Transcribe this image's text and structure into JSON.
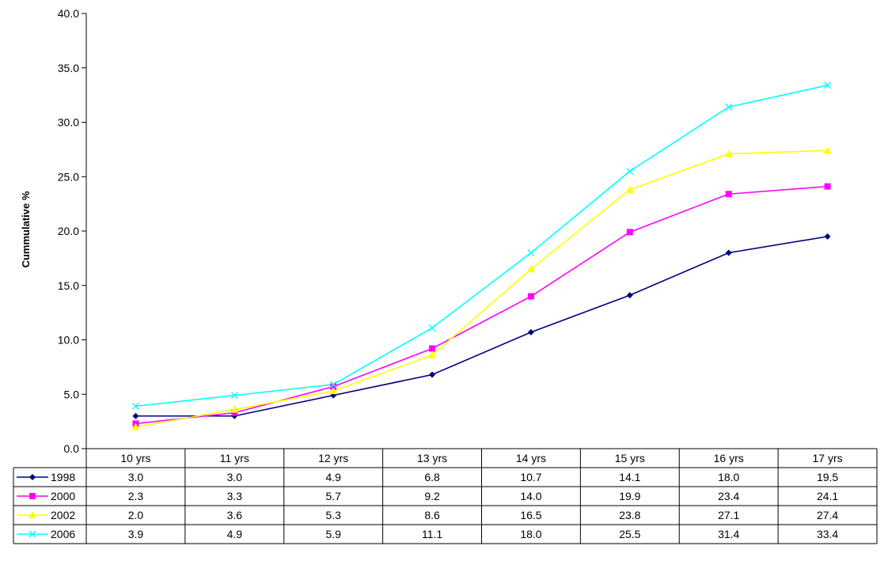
{
  "chart_data": {
    "type": "line",
    "ylabel": "Cummulative %",
    "xlabel": "",
    "categories": [
      "10 yrs",
      "11 yrs",
      "12 yrs",
      "13 yrs",
      "14 yrs",
      "15 yrs",
      "16 yrs",
      "17 yrs"
    ],
    "ylim": [
      0,
      40
    ],
    "yticks": [
      "0.0",
      "5.0",
      "10.0",
      "15.0",
      "20.0",
      "25.0",
      "30.0",
      "35.0",
      "40.0"
    ],
    "grid": false,
    "legend": "data-table-left",
    "series": [
      {
        "name": "1998",
        "color": "#000080",
        "marker": "diamond",
        "values": [
          3.0,
          3.0,
          4.9,
          6.8,
          10.7,
          14.1,
          18.0,
          19.5
        ],
        "labels": [
          "3.0",
          "3.0",
          "4.9",
          "6.8",
          "10.7",
          "14.1",
          "18.0",
          "19.5"
        ]
      },
      {
        "name": "2000",
        "color": "#ff00ff",
        "marker": "square",
        "values": [
          2.3,
          3.3,
          5.7,
          9.2,
          14.0,
          19.9,
          23.4,
          24.1
        ],
        "labels": [
          "2.3",
          "3.3",
          "5.7",
          "9.2",
          "14.0",
          "19.9",
          "23.4",
          "24.1"
        ]
      },
      {
        "name": "2002",
        "color": "#ffff00",
        "marker": "triangle",
        "values": [
          2.0,
          3.6,
          5.3,
          8.6,
          16.5,
          23.8,
          27.1,
          27.4
        ],
        "labels": [
          "2.0",
          "3.6",
          "5.3",
          "8.6",
          "16.5",
          "23.8",
          "27.1",
          "27.4"
        ]
      },
      {
        "name": "2006",
        "color": "#00ffff",
        "marker": "x",
        "values": [
          3.9,
          4.9,
          5.9,
          11.1,
          18.0,
          25.5,
          31.4,
          33.4
        ],
        "labels": [
          "3.9",
          "4.9",
          "5.9",
          "11.1",
          "18.0",
          "25.5",
          "31.4",
          "33.4"
        ]
      }
    ]
  }
}
